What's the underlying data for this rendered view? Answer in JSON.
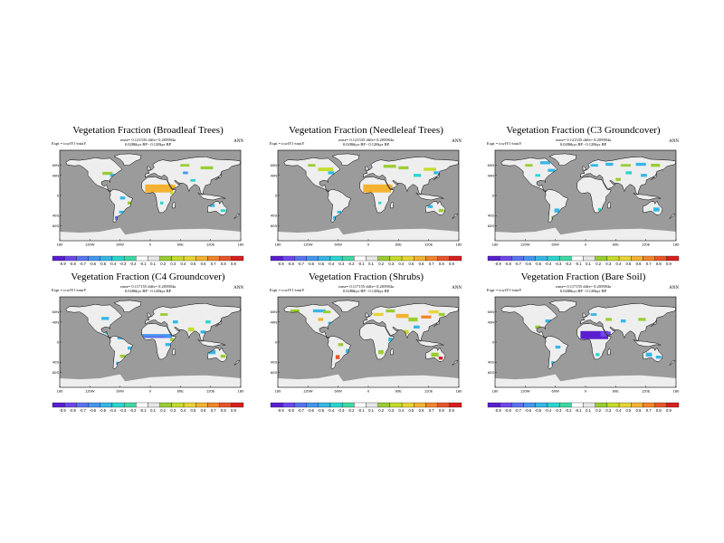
{
  "colors": {
    "ocean": "#9b9b9b",
    "land": "#eeeeee",
    "coast": "#000000"
  },
  "colorscale": [
    "#5a1fd0",
    "#6e46ee",
    "#5a73f2",
    "#4596f0",
    "#35b7e6",
    "#2ad6d0",
    "#3fd9a2",
    "#ffffff",
    "#e7e7e7",
    "#9acd32",
    "#c5dc2c",
    "#e6d535",
    "#f3b232",
    "#f2852c",
    "#e9542a",
    "#d91f1f"
  ],
  "panels": [
    {
      "title": "Vegetation Fraction (Broadleaf Trees)",
      "line1": "rmse= 0.121535 diffs= 0.205984a",
      "expt": "Expt = tcwfY1-tniuY",
      "line2": "0.0286kyr BP - 0.128kyr BP",
      "ann": "ANN",
      "lat_labels": [
        "60N",
        "40N",
        "0",
        "40S",
        "60S"
      ],
      "lon_labels": [
        "180",
        "120W",
        "60W",
        "0",
        "60E",
        "120E",
        "180"
      ],
      "cbar_labels": [
        "-0.9",
        "-0.8",
        "-0.7",
        "-0.6",
        "-0.5",
        "-0.4",
        "-0.3",
        "-0.2",
        "-0.1",
        "0.1",
        "0.2",
        "0.3",
        "0.4",
        "0.5",
        "0.6",
        "0.7",
        "0.8",
        "0.9"
      ],
      "anomaly": "broadleaf"
    },
    {
      "title": "Vegetation Fraction (Needleleaf Trees)",
      "line1": "rmse= 0.121535 diffs= 0.205984a",
      "expt": "Expt = tcwfY1-tniuY",
      "line2": "0.0286kyr BP - 0.128kyr BP",
      "ann": "ANN",
      "lat_labels": [
        "60N",
        "40N",
        "0",
        "40S",
        "60S"
      ],
      "lon_labels": [
        "180",
        "120W",
        "60W",
        "0",
        "60E",
        "120E",
        "180"
      ],
      "cbar_labels": [
        "-0.9",
        "-0.8",
        "-0.7",
        "-0.6",
        "-0.5",
        "-0.4",
        "-0.3",
        "-0.2",
        "-0.1",
        "0.1",
        "0.2",
        "0.3",
        "0.4",
        "0.5",
        "0.6",
        "0.7",
        "0.8",
        "0.9"
      ],
      "anomaly": "needleleaf"
    },
    {
      "title": "Vegetation Fraction (C3 Groundcover)",
      "line1": "rmse= 0.121535 diffs= 0.205984a",
      "expt": "Expt = tcwfY1-tniuY",
      "line2": "0.0286kyr BP - 0.128kyr BP",
      "ann": "ANN",
      "lat_labels": [
        "60N",
        "40N",
        "0",
        "40S",
        "60S"
      ],
      "lon_labels": [
        "180",
        "120W",
        "60W",
        "0",
        "60E",
        "120E",
        "180"
      ],
      "cbar_labels": [
        "-0.9",
        "-0.8",
        "-0.7",
        "-0.6",
        "-0.5",
        "-0.4",
        "-0.3",
        "-0.2",
        "-0.1",
        "0.1",
        "0.2",
        "0.3",
        "0.4",
        "0.5",
        "0.6",
        "0.7",
        "0.8",
        "0.9"
      ],
      "anomaly": "c3"
    },
    {
      "title": "Vegetation Fraction (C4 Groundcover)",
      "line1": "rmse= 0.117155 diffs= 0.205984a",
      "expt": "Expt = tcwfY1-tniuY",
      "line2": "0.0286kyr BP - 0.128kyr BP",
      "ann": "ANN",
      "lat_labels": [
        "60N",
        "40N",
        "0",
        "40S",
        "60S"
      ],
      "lon_labels": [
        "180",
        "120W",
        "60W",
        "0",
        "60E",
        "120E",
        "180"
      ],
      "cbar_labels": [
        "-0.9",
        "-0.8",
        "-0.7",
        "-0.6",
        "-0.5",
        "-0.4",
        "-0.3",
        "-0.2",
        "-0.1",
        "0.1",
        "0.2",
        "0.3",
        "0.4",
        "0.5",
        "0.6",
        "0.7",
        "0.8",
        "0.9"
      ],
      "anomaly": "c4"
    },
    {
      "title": "Vegetation Fraction (Shrubs)",
      "line1": "rmse= 0.117155 diffs= 0.205984a",
      "expt": "Expt = tcwfY1-tniuY",
      "line2": "0.0286kyr BP - 0.128kyr BP",
      "ann": "ANN",
      "lat_labels": [
        "60N",
        "40N",
        "0",
        "40S",
        "60S"
      ],
      "lon_labels": [
        "180",
        "120W",
        "60W",
        "0",
        "60E",
        "120E",
        "180"
      ],
      "cbar_labels": [
        "-0.9",
        "-0.8",
        "-0.7",
        "-0.6",
        "-0.5",
        "-0.4",
        "-0.3",
        "-0.2",
        "-0.1",
        "0.1",
        "0.2",
        "0.3",
        "0.4",
        "0.5",
        "0.6",
        "0.7",
        "0.8",
        "0.9"
      ],
      "anomaly": "shrubs"
    },
    {
      "title": "Vegetation Fraction (Bare Soil)",
      "line1": "rmse= 0.117155 diffs= 0.205984a",
      "expt": "Expt = tcwfY1-tniuY",
      "line2": "0.0286kyr BP - 0.128kyr BP",
      "ann": "ANN",
      "lat_labels": [
        "60N",
        "40N",
        "0",
        "40S",
        "60S"
      ],
      "lon_labels": [
        "180",
        "120W",
        "60W",
        "0",
        "60E",
        "120E",
        "180"
      ],
      "cbar_labels": [
        "-0.9",
        "-0.8",
        "-0.7",
        "-0.6",
        "-0.5",
        "-0.4",
        "-0.3",
        "-0.2",
        "-0.1",
        "0.1",
        "0.2",
        "0.3",
        "0.4",
        "0.5",
        "0.6",
        "0.7",
        "0.8",
        "0.9"
      ],
      "anomaly": "baresoil"
    }
  ]
}
